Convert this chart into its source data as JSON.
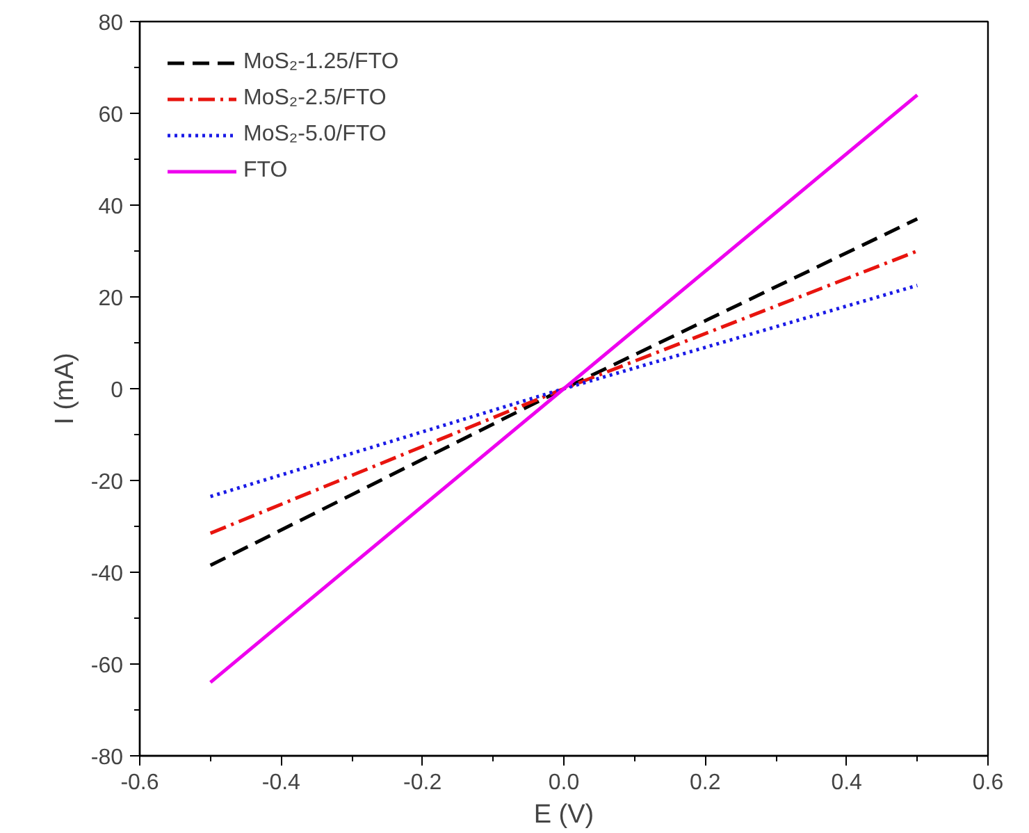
{
  "chart_data": {
    "type": "line",
    "xlabel": "E (V)",
    "ylabel": "I (mA)",
    "xlim": [
      -0.6,
      0.6
    ],
    "ylim": [
      -80,
      80
    ],
    "xticks": [
      {
        "value": -0.6,
        "label": "-0.6"
      },
      {
        "value": -0.4,
        "label": "-0.4"
      },
      {
        "value": -0.2,
        "label": "-0.2"
      },
      {
        "value": 0,
        "label": "0.0"
      },
      {
        "value": 0.2,
        "label": "0.2"
      },
      {
        "value": 0.4,
        "label": "0.4"
      },
      {
        "value": 0.6,
        "label": "0.6"
      }
    ],
    "yticks": [
      -80,
      -60,
      -40,
      -20,
      0,
      20,
      40,
      60,
      80
    ],
    "x": [
      -0.5,
      0,
      0.5
    ],
    "series": [
      {
        "name": "MoS₂-1.25/FTO",
        "color": "#000000",
        "line_style": "dashed",
        "values": [
          -38.5,
          0,
          37
        ]
      },
      {
        "name": "MoS₂-2.5/FTO",
        "color": "#e8140e",
        "line_style": "dashdot",
        "values": [
          -31.5,
          0,
          30
        ]
      },
      {
        "name": "MoS₂-5.0/FTO",
        "color": "#1a1ae6",
        "line_style": "dotted",
        "values": [
          -23.5,
          0,
          22.5
        ]
      },
      {
        "name": "FTO",
        "color": "#ee00ee",
        "line_style": "solid",
        "values": [
          -64,
          0,
          64
        ]
      }
    ],
    "legend": "top left",
    "grid": false,
    "marker": "none"
  }
}
